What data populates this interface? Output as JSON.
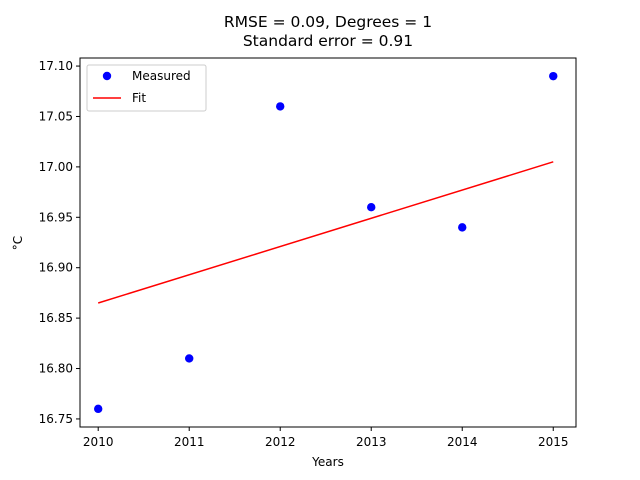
{
  "chart_data": {
    "type": "scatter",
    "title_lines": [
      "RMSE = 0.09, Degrees = 1",
      "Standard error = 0.91"
    ],
    "xlabel": "Years",
    "ylabel": "°C",
    "xlim": [
      2009.8,
      2015.25
    ],
    "ylim": [
      16.742,
      17.108
    ],
    "xticks": [
      2010,
      2011,
      2012,
      2013,
      2014,
      2015
    ],
    "yticks": [
      16.75,
      16.8,
      16.85,
      16.9,
      16.95,
      17.0,
      17.05,
      17.1
    ],
    "ytick_labels": [
      "16.75",
      "16.80",
      "16.85",
      "16.90",
      "16.95",
      "17.00",
      "17.05",
      "17.10"
    ],
    "grid": false,
    "legend_position": "top-left",
    "series": [
      {
        "name": "Measured",
        "kind": "scatter",
        "color": "#0000ff",
        "x": [
          2010,
          2011,
          2012,
          2013,
          2014,
          2015
        ],
        "y": [
          16.76,
          16.81,
          17.06,
          16.96,
          16.94,
          17.09
        ]
      },
      {
        "name": "Fit",
        "kind": "line",
        "color": "#ff0000",
        "x": [
          2010,
          2015
        ],
        "y": [
          16.865,
          17.005
        ]
      }
    ]
  }
}
